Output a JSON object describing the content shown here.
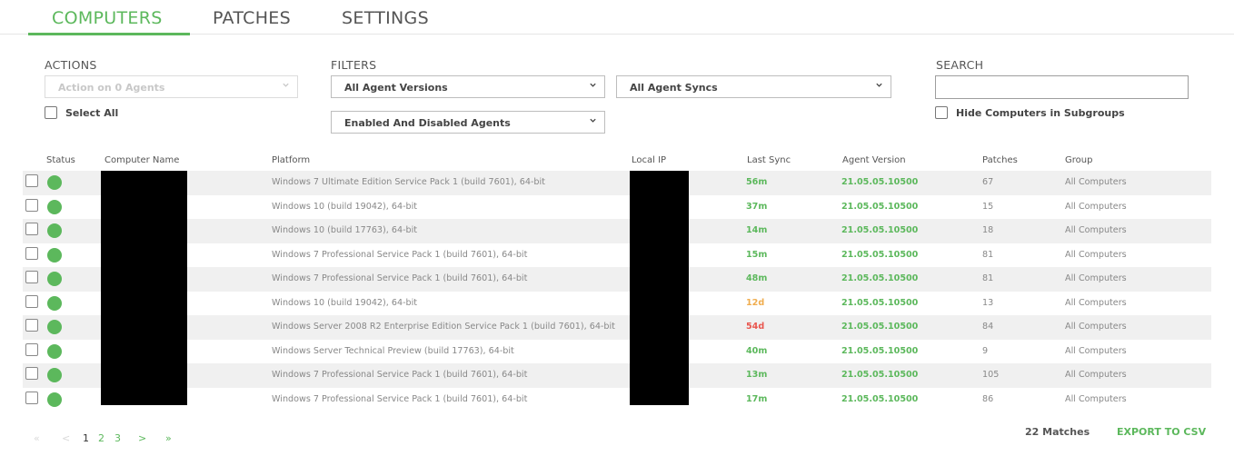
{
  "tabs": [
    {
      "label": "COMPUTERS",
      "active": true
    },
    {
      "label": "PATCHES",
      "active": false
    },
    {
      "label": "SETTINGS",
      "active": false
    }
  ],
  "actions": {
    "label": "ACTIONS",
    "select_value": "Action on 0 Agents",
    "select_all_label": "Select All"
  },
  "filters": {
    "label": "FILTERS",
    "agent_versions": "All Agent Versions",
    "agent_syncs": "All Agent Syncs",
    "agent_state": "Enabled And Disabled Agents"
  },
  "search": {
    "label": "SEARCH",
    "value": "",
    "hide_subgroups_label": "Hide Computers in Subgroups"
  },
  "table": {
    "headers": {
      "status": "Status",
      "computer_name": "Computer Name",
      "platform": "Platform",
      "local_ip": "Local IP",
      "last_sync": "Last Sync",
      "agent_version": "Agent Version",
      "patches": "Patches",
      "group": "Group"
    },
    "rows": [
      {
        "platform": "Windows 7 Ultimate Edition Service Pack 1 (build 7601), 64-bit",
        "last_sync": "56m",
        "sync_color": "#5cb85c",
        "agent_version": "21.05.05.10500",
        "patches": "67",
        "group": "All Computers"
      },
      {
        "platform": "Windows 10 (build 19042), 64-bit",
        "last_sync": "37m",
        "sync_color": "#5cb85c",
        "agent_version": "21.05.05.10500",
        "patches": "15",
        "group": "All Computers"
      },
      {
        "platform": "Windows 10 (build 17763), 64-bit",
        "last_sync": "14m",
        "sync_color": "#5cb85c",
        "agent_version": "21.05.05.10500",
        "patches": "18",
        "group": "All Computers"
      },
      {
        "platform": "Windows 7 Professional Service Pack 1 (build 7601), 64-bit",
        "last_sync": "15m",
        "sync_color": "#5cb85c",
        "agent_version": "21.05.05.10500",
        "patches": "81",
        "group": "All Computers"
      },
      {
        "platform": "Windows 7 Professional Service Pack 1 (build 7601), 64-bit",
        "last_sync": "48m",
        "sync_color": "#5cb85c",
        "agent_version": "21.05.05.10500",
        "patches": "81",
        "group": "All Computers"
      },
      {
        "platform": "Windows 10 (build 19042), 64-bit",
        "last_sync": "12d",
        "sync_color": "#f0ad4e",
        "agent_version": "21.05.05.10500",
        "patches": "13",
        "group": "All Computers"
      },
      {
        "platform": "Windows Server 2008 R2 Enterprise Edition Service Pack 1 (build 7601), 64-bit",
        "last_sync": "54d",
        "sync_color": "#e9574f",
        "agent_version": "21.05.05.10500",
        "patches": "84",
        "group": "All Computers"
      },
      {
        "platform": "Windows Server Technical Preview (build 17763), 64-bit",
        "last_sync": "40m",
        "sync_color": "#5cb85c",
        "agent_version": "21.05.05.10500",
        "patches": "9",
        "group": "All Computers"
      },
      {
        "platform": "Windows 7 Professional Service Pack 1 (build 7601), 64-bit",
        "last_sync": "13m",
        "sync_color": "#5cb85c",
        "agent_version": "21.05.05.10500",
        "patches": "105",
        "group": "All Computers"
      },
      {
        "platform": "Windows 7 Professional Service Pack 1 (build 7601), 64-bit",
        "last_sync": "17m",
        "sync_color": "#5cb85c",
        "agent_version": "21.05.05.10500",
        "patches": "86",
        "group": "All Computers"
      }
    ]
  },
  "pagination": {
    "first": "«",
    "prev": "<",
    "pages": [
      "1",
      "2",
      "3"
    ],
    "current": "1",
    "next": ">",
    "last": "»"
  },
  "footer": {
    "matches": "22 Matches",
    "export_label": "EXPORT TO CSV"
  },
  "colors": {
    "accent": "#5cb85c",
    "warning": "#f0ad4e",
    "danger": "#e9574f"
  }
}
